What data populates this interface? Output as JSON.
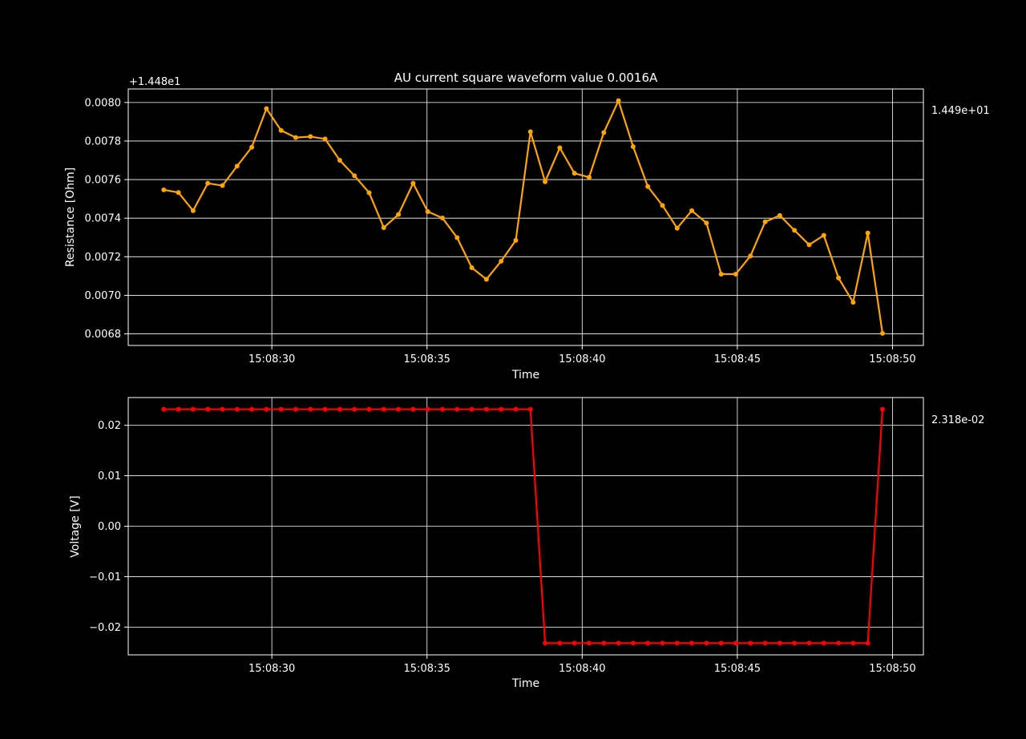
{
  "chart_data": [
    {
      "type": "line",
      "title": "AU current square waveform value 0.0016A",
      "xlabel": "Time",
      "ylabel": "Resistance [Ohm]",
      "offset_label": "+1.448e1",
      "side_label": "1.449e+01",
      "color": "#ffa500",
      "xlim": [
        -3.2,
        48.3
      ],
      "ylim": [
        0.00674,
        0.00807
      ],
      "yticks": [
        0.0068,
        0.007,
        0.0072,
        0.0074,
        0.0076,
        0.0078,
        0.008
      ],
      "ytick_labels": [
        "0.0068",
        "0.0070",
        "0.0072",
        "0.0074",
        "0.0076",
        "0.0078",
        "0.0080"
      ],
      "xticks": [
        6.1,
        16.15,
        26.2,
        36.25,
        46.3
      ],
      "xtick_labels": [
        "15:08:30",
        "15:08:35",
        "15:08:40",
        "15:08:45",
        "15:08:50"
      ],
      "x": [
        -0.9,
        0.05,
        1.0,
        1.95,
        2.9,
        3.85,
        4.8,
        5.75,
        6.7,
        7.65,
        8.6,
        9.55,
        10.5,
        11.45,
        12.4,
        13.35,
        14.3,
        15.25,
        16.2,
        17.15,
        18.1,
        19.05,
        20.0,
        20.95,
        21.9,
        22.85,
        23.8,
        24.75,
        25.7,
        26.65,
        27.6,
        28.55,
        29.5,
        30.45,
        31.4,
        32.35,
        33.3,
        34.25,
        35.2,
        36.15,
        37.1,
        38.05,
        39.0,
        39.95,
        40.9,
        41.85,
        42.8,
        43.75,
        44.7,
        45.65
      ],
      "y": [
        0.007547,
        0.007533,
        0.007439,
        0.007581,
        0.007569,
        0.00767,
        0.007768,
        0.007968,
        0.007855,
        0.007818,
        0.007823,
        0.007811,
        0.0077,
        0.00762,
        0.007532,
        0.007351,
        0.007419,
        0.007581,
        0.007434,
        0.007401,
        0.007299,
        0.007143,
        0.007083,
        0.007177,
        0.007285,
        0.007848,
        0.007589,
        0.007765,
        0.007633,
        0.007612,
        0.007844,
        0.008009,
        0.007771,
        0.007564,
        0.007466,
        0.007348,
        0.007439,
        0.007375,
        0.00711,
        0.00711,
        0.007204,
        0.007381,
        0.007414,
        0.007337,
        0.007262,
        0.007311,
        0.00709,
        0.006964,
        0.007323,
        0.006803
      ]
    },
    {
      "type": "line",
      "title": "",
      "xlabel": "Time",
      "ylabel": "Voltage [V]",
      "side_label": "2.318e-02",
      "color": "#ff0000",
      "xlim": [
        -3.2,
        48.3
      ],
      "ylim": [
        -0.0255,
        0.0255
      ],
      "yticks": [
        -0.02,
        -0.01,
        0.0,
        0.01,
        0.02
      ],
      "ytick_labels": [
        "−0.02",
        "−0.01",
        "0.00",
        "0.01",
        "0.02"
      ],
      "xticks": [
        6.1,
        16.15,
        26.2,
        36.25,
        46.3
      ],
      "xtick_labels": [
        "15:08:30",
        "15:08:35",
        "15:08:40",
        "15:08:45",
        "15:08:50"
      ],
      "x": [
        -0.9,
        0.05,
        1.0,
        1.95,
        2.9,
        3.85,
        4.8,
        5.75,
        6.7,
        7.65,
        8.6,
        9.55,
        10.5,
        11.45,
        12.4,
        13.35,
        14.3,
        15.25,
        16.2,
        17.15,
        18.1,
        19.05,
        20.0,
        20.95,
        21.9,
        22.85,
        23.8,
        24.75,
        25.7,
        26.65,
        27.6,
        28.55,
        29.5,
        30.45,
        31.4,
        32.35,
        33.3,
        34.25,
        35.2,
        36.15,
        37.1,
        38.05,
        39.0,
        39.95,
        40.9,
        41.85,
        42.8,
        43.75,
        44.7,
        45.65
      ],
      "y": [
        0.02318,
        0.02318,
        0.02318,
        0.02318,
        0.02318,
        0.02318,
        0.02318,
        0.02318,
        0.02318,
        0.02318,
        0.02318,
        0.02318,
        0.02318,
        0.02318,
        0.02318,
        0.02318,
        0.02318,
        0.02318,
        0.02318,
        0.02318,
        0.02318,
        0.02318,
        0.02318,
        0.02318,
        0.02318,
        0.02318,
        -0.02318,
        -0.02318,
        -0.02318,
        -0.02318,
        -0.02318,
        -0.02318,
        -0.02318,
        -0.02318,
        -0.02318,
        -0.02318,
        -0.02318,
        -0.02318,
        -0.02318,
        -0.02318,
        -0.02318,
        -0.02318,
        -0.02318,
        -0.02318,
        -0.02318,
        -0.02318,
        -0.02318,
        -0.02318,
        -0.02318,
        0.02318
      ]
    }
  ]
}
